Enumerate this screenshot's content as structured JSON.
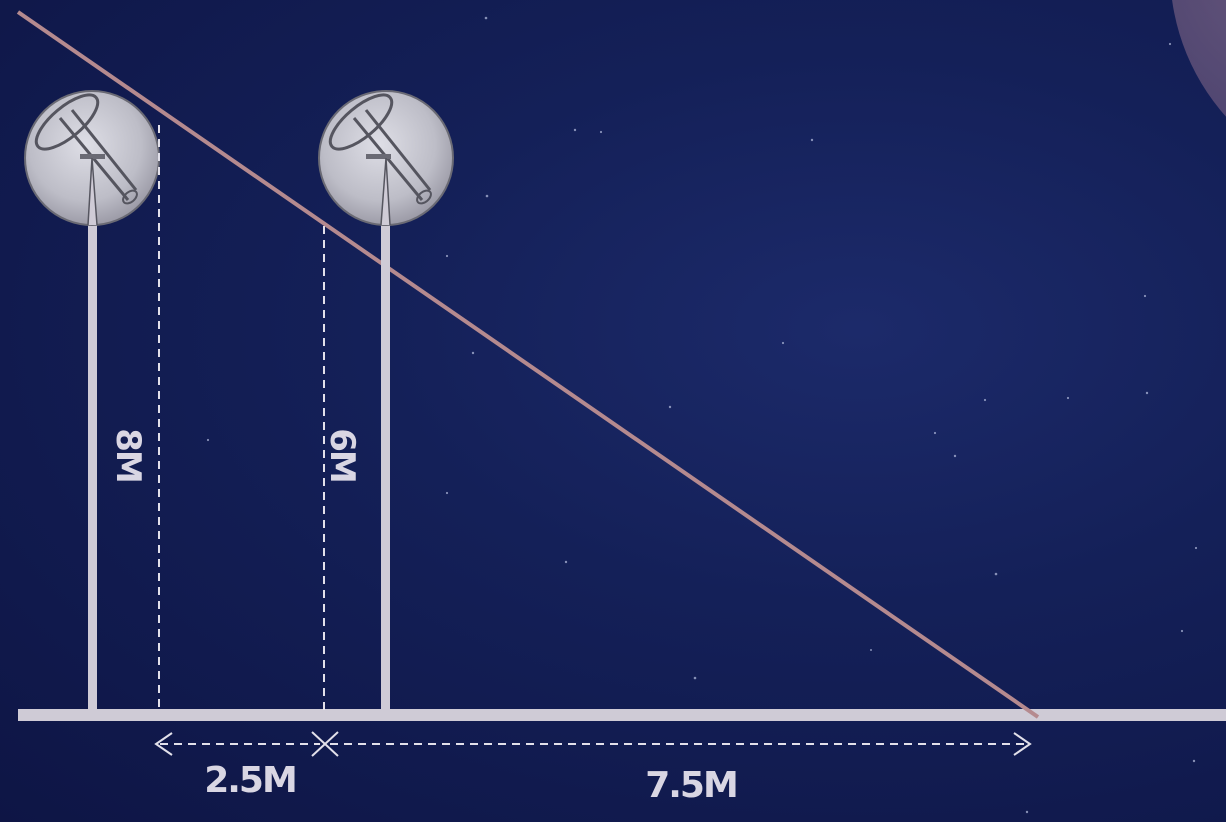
{
  "labels": {
    "pole1_height": "8M",
    "pole2_height": "6M",
    "gap_distance": "2.5M",
    "shadow_distance": "7.5M"
  },
  "colors": {
    "background": "#121b52",
    "pole": "#cfcbd6",
    "ray": "#b58a8f",
    "lamp": "#c9c9d2",
    "moon": "#8f6f87"
  }
}
